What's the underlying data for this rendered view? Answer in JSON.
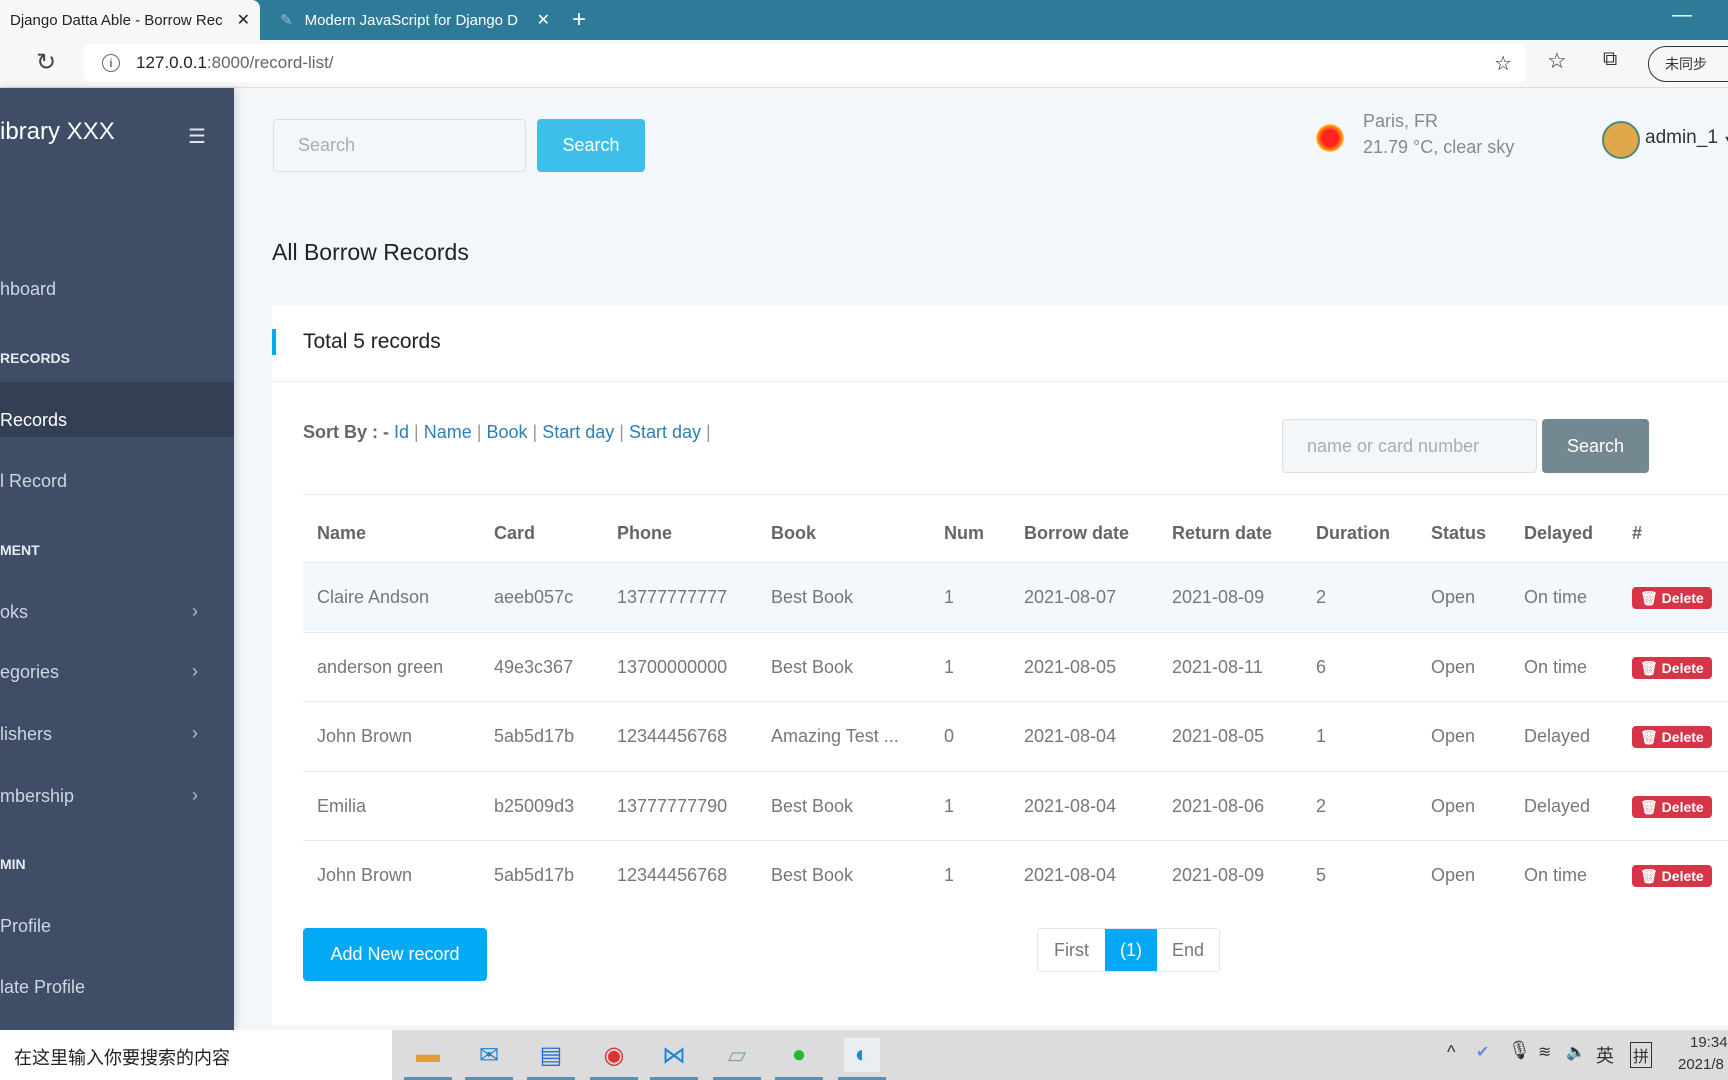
{
  "browser": {
    "tabs": [
      {
        "title": "Django Datta Able - Borrow Rec",
        "active": true
      },
      {
        "title": "Modern JavaScript for Django D",
        "active": false
      }
    ],
    "url_host": "127.0.0.1",
    "url_rest": ":8000/record-list/",
    "sync_label": "未同步"
  },
  "sidebar": {
    "brand": "ibrary XXX",
    "items": [
      {
        "label": "hboard",
        "type": "item"
      },
      {
        "label": "RECORDS",
        "type": "header"
      },
      {
        "label": "Records",
        "type": "item",
        "active": true
      },
      {
        "label": "l Record",
        "type": "item"
      },
      {
        "label": "MENT",
        "type": "header"
      },
      {
        "label": "oks",
        "type": "item",
        "chevron": true
      },
      {
        "label": "egories",
        "type": "item",
        "chevron": true
      },
      {
        "label": "lishers",
        "type": "item",
        "chevron": true
      },
      {
        "label": "mbership",
        "type": "item",
        "chevron": true
      },
      {
        "label": "MIN",
        "type": "header"
      },
      {
        "label": "Profile",
        "type": "item"
      },
      {
        "label": "late Profile",
        "type": "item"
      }
    ]
  },
  "header": {
    "search_placeholder": "Search",
    "search_button": "Search",
    "weather_city": "Paris, FR",
    "weather_desc": "21.79 °C, clear sky",
    "user": "admin_1"
  },
  "page": {
    "title": "All Borrow Records",
    "card_title": "Total 5 records",
    "sort_label": "Sort By : -",
    "sort_links": [
      "Id",
      "Name",
      "Book",
      "Start day",
      "Start day"
    ],
    "filter_placeholder": "name or card number",
    "filter_button": "Search",
    "columns": [
      "Name",
      "Card",
      "Phone",
      "Book",
      "Num",
      "Borrow date",
      "Return date",
      "Duration",
      "Status",
      "Delayed",
      "#"
    ],
    "rows": [
      [
        "Claire Andson",
        "aeeb057c",
        "13777777777",
        "Best Book",
        "1",
        "2021-08-07",
        "2021-08-09",
        "2",
        "Open",
        "On time"
      ],
      [
        "anderson green",
        "49e3c367",
        "13700000000",
        "Best Book",
        "1",
        "2021-08-05",
        "2021-08-11",
        "6",
        "Open",
        "On time"
      ],
      [
        "John Brown",
        "5ab5d17b",
        "12344456768",
        "Amazing Test ...",
        "0",
        "2021-08-04",
        "2021-08-05",
        "1",
        "Open",
        "Delayed"
      ],
      [
        "Emilia",
        "b25009d3",
        "13777777790",
        "Best Book",
        "1",
        "2021-08-04",
        "2021-08-06",
        "2",
        "Open",
        "Delayed"
      ],
      [
        "John Brown",
        "5ab5d17b",
        "12344456768",
        "Best Book",
        "1",
        "2021-08-04",
        "2021-08-09",
        "5",
        "Open",
        "On time"
      ]
    ],
    "delete_label": "Delete",
    "add_button": "Add New record",
    "pagination": {
      "first": "First",
      "current": "(1)",
      "end": "End"
    }
  },
  "taskbar": {
    "search_placeholder": "在这里输入你要搜索的内容",
    "ime_lang": "英",
    "ime_mode": "拼",
    "time": "19:34",
    "date": "2021/8"
  },
  "colors": {
    "sidebar": "#3f4d67",
    "primary": "#04a9f5",
    "danger": "#d63447",
    "tabbar": "#2e7b99"
  }
}
